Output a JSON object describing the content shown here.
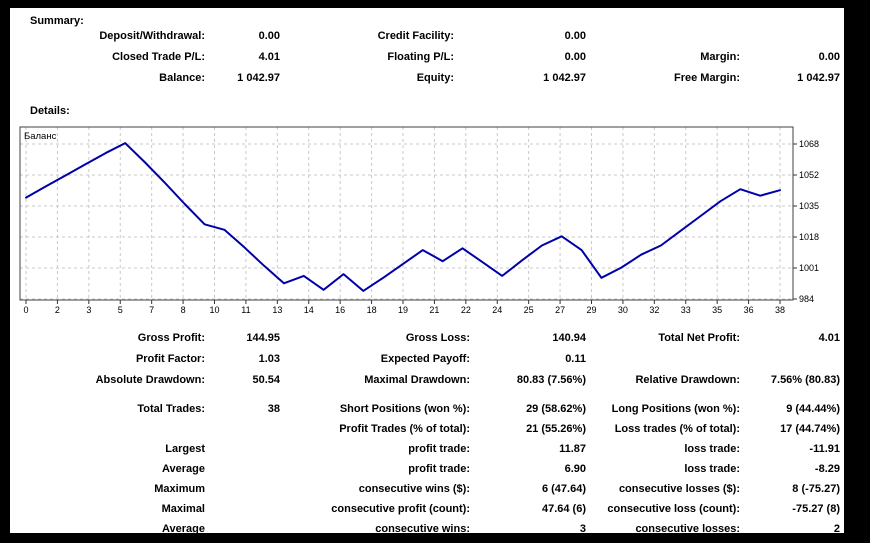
{
  "summary": {
    "heading": "Summary:",
    "rows": [
      [
        "Deposit/Withdrawal:",
        "0.00",
        "Credit Facility:",
        "0.00",
        "",
        ""
      ],
      [
        "Closed Trade P/L:",
        "4.01",
        "Floating P/L:",
        "0.00",
        "Margin:",
        "0.00"
      ],
      [
        "Balance:",
        "1 042.97",
        "Equity:",
        "1 042.97",
        "Free Margin:",
        "1 042.97"
      ]
    ]
  },
  "details": {
    "heading": "Details:",
    "block1": [
      [
        "Gross Profit:",
        "144.95",
        "Gross Loss:",
        "140.94",
        "Total Net Profit:",
        "4.01"
      ],
      [
        "Profit Factor:",
        "1.03",
        "Expected Payoff:",
        "0.11",
        "",
        ""
      ],
      [
        "Absolute Drawdown:",
        "50.54",
        "Maximal Drawdown:",
        "80.83 (7.56%)",
        "Relative Drawdown:",
        "7.56% (80.83)"
      ]
    ],
    "block2": [
      [
        "Total Trades:",
        "38",
        "Short Positions (won %):",
        "29 (58.62%)",
        "Long Positions (won %):",
        "9 (44.44%)"
      ],
      [
        "",
        "",
        "Profit Trades (% of total):",
        "21 (55.26%)",
        "Loss trades (% of total):",
        "17 (44.74%)"
      ],
      [
        "Largest",
        "",
        "profit trade:",
        "11.87",
        "loss trade:",
        "-11.91"
      ],
      [
        "Average",
        "",
        "profit trade:",
        "6.90",
        "loss trade:",
        "-8.29"
      ],
      [
        "Maximum",
        "",
        "consecutive wins ($):",
        "6 (47.64)",
        "consecutive losses ($):",
        "8 (-75.27)"
      ],
      [
        "Maximal",
        "",
        "consecutive profit (count):",
        "47.64 (6)",
        "consecutive loss (count):",
        "-75.27 (8)"
      ],
      [
        "Average",
        "",
        "consecutive wins:",
        "3",
        "consecutive losses:",
        "2"
      ]
    ]
  },
  "chart_data": {
    "type": "line",
    "title": "Баланс",
    "grid": true,
    "label_position": "top-left",
    "xlim": [
      0,
      38.7
    ],
    "ylim": [
      984,
      1077
    ],
    "x_tick_labels": [
      "0",
      "2",
      "3",
      "5",
      "7",
      "8",
      "10",
      "11",
      "13",
      "14",
      "16",
      "18",
      "19",
      "21",
      "22",
      "24",
      "25",
      "27",
      "29",
      "30",
      "32",
      "33",
      "35",
      "36",
      "38"
    ],
    "y_ticks": [
      1068,
      1052,
      1035,
      1018,
      1001,
      984
    ],
    "colors": {
      "line": "#0000A8",
      "grid": "#c9c9c9",
      "plot_border": "#404040",
      "background": "#ffffff",
      "frame": "#000000"
    },
    "series": [
      {
        "name": "Баланс",
        "color": "#0000A8",
        "x": [
          0,
          1,
          2,
          3,
          4,
          5,
          6,
          7,
          8,
          9,
          10,
          11,
          12,
          13,
          14,
          15,
          16,
          17,
          18,
          19,
          20,
          21,
          22,
          23,
          24,
          25,
          26,
          27,
          28,
          29,
          30,
          31,
          32,
          33,
          34,
          35,
          36,
          37,
          38
        ],
        "values": [
          1038.96,
          1045,
          1051,
          1057,
          1063,
          1068.5,
          1058,
          1047,
          1035.5,
          1024.5,
          1021.5,
          1012,
          1002,
          992.5,
          996.5,
          989,
          997.5,
          988.4,
          995.5,
          1003,
          1010.5,
          1004.5,
          1011.5,
          1004,
          996.5,
          1005,
          1013,
          1018,
          1010.5,
          995.5,
          1001,
          1008,
          1013,
          1021,
          1029,
          1037,
          1043.5,
          1040,
          1042.97
        ]
      }
    ]
  }
}
